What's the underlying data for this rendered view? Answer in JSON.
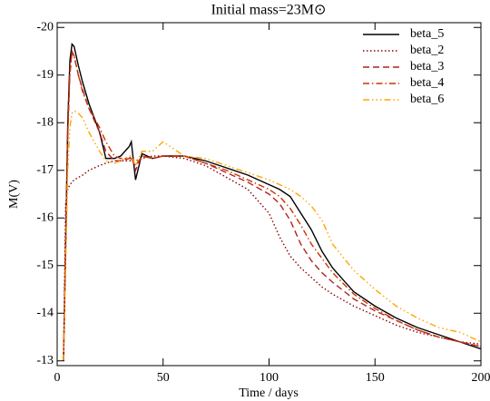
{
  "chart_data": {
    "type": "line",
    "title": "Initial mass=23M⊙",
    "xlabel": "Time / days",
    "ylabel": "M(V)",
    "xlim": [
      0,
      200
    ],
    "xticks": [
      0,
      50,
      100,
      150,
      200
    ],
    "ylim": [
      -12.9,
      -20.1
    ],
    "yticks": [
      -20,
      -19,
      -18,
      -17,
      -16,
      -15,
      -14,
      -13
    ],
    "legend": "upper right",
    "x": [
      3,
      4,
      5,
      6,
      7,
      8,
      10,
      12,
      15,
      20,
      23,
      27,
      30,
      34,
      35,
      37,
      40,
      45,
      50,
      60,
      70,
      80,
      90,
      100,
      105,
      110,
      115,
      120,
      125,
      130,
      140,
      150,
      160,
      170,
      180,
      190,
      200
    ],
    "series": [
      {
        "name": "beta_5",
        "color": "#000000",
        "dash": "solid",
        "values": [
          -13,
          -15.5,
          -18,
          -19.3,
          -19.65,
          -19.6,
          -19.2,
          -18.85,
          -18.4,
          -17.8,
          -17.25,
          -17.25,
          -17.3,
          -17.5,
          -17.6,
          -16.8,
          -17.35,
          -17.25,
          -17.3,
          -17.3,
          -17.2,
          -17.05,
          -16.9,
          -16.7,
          -16.6,
          -16.45,
          -16.1,
          -15.75,
          -15.3,
          -14.95,
          -14.45,
          -14.15,
          -13.9,
          -13.7,
          -13.55,
          -13.4,
          -13.25
        ]
      },
      {
        "name": "beta_2",
        "color": "#8b0000",
        "dash": "dotted",
        "values": [
          -13,
          -16.3,
          -16.6,
          -16.7,
          -16.75,
          -16.8,
          -16.85,
          -16.9,
          -17.0,
          -17.1,
          -17.15,
          -17.2,
          -17.2,
          -17.2,
          -17.2,
          -17.2,
          -17.25,
          -17.3,
          -17.3,
          -17.25,
          -17.1,
          -16.85,
          -16.6,
          -16.1,
          -15.6,
          -15.2,
          -14.95,
          -14.75,
          -14.55,
          -14.4,
          -14.15,
          -13.95,
          -13.75,
          -13.6,
          -13.5,
          -13.4,
          -13.35
        ]
      },
      {
        "name": "beta_3",
        "color": "#b22222",
        "dash": "dashed",
        "values": [
          -13,
          -15.3,
          -17.8,
          -19.1,
          -19.5,
          -19.4,
          -19.0,
          -18.7,
          -18.3,
          -17.8,
          -17.4,
          -17.2,
          -17.2,
          -17.25,
          -17.3,
          -17.0,
          -17.3,
          -17.25,
          -17.3,
          -17.3,
          -17.15,
          -16.95,
          -16.75,
          -16.5,
          -16.3,
          -15.95,
          -15.45,
          -15.1,
          -14.85,
          -14.65,
          -14.3,
          -14.05,
          -13.85,
          -13.65,
          -13.5,
          -13.4,
          -13.3
        ]
      },
      {
        "name": "beta_4",
        "color": "#cc3300",
        "dash": "dashdot",
        "values": [
          -13,
          -15.2,
          -17.7,
          -19.0,
          -19.45,
          -19.4,
          -19.0,
          -18.65,
          -18.3,
          -17.9,
          -17.6,
          -17.3,
          -17.25,
          -17.25,
          -17.25,
          -17.1,
          -17.3,
          -17.25,
          -17.3,
          -17.3,
          -17.15,
          -17.0,
          -16.8,
          -16.6,
          -16.45,
          -16.2,
          -15.85,
          -15.45,
          -15.15,
          -14.85,
          -14.4,
          -14.1,
          -13.85,
          -13.65,
          -13.5,
          -13.4,
          -13.3
        ]
      },
      {
        "name": "beta_6",
        "color": "#ffa500",
        "dash": "dashdotdotdot",
        "values": [
          -13,
          -15.0,
          -17.0,
          -17.9,
          -18.2,
          -18.25,
          -18.2,
          -18.1,
          -17.8,
          -17.4,
          -17.2,
          -17.15,
          -17.2,
          -17.3,
          -17.3,
          -17.1,
          -17.4,
          -17.4,
          -17.6,
          -17.3,
          -17.25,
          -17.1,
          -16.95,
          -16.8,
          -16.7,
          -16.6,
          -16.45,
          -16.25,
          -15.95,
          -15.45,
          -14.9,
          -14.5,
          -14.15,
          -13.9,
          -13.7,
          -13.6,
          -13.4
        ]
      }
    ]
  }
}
